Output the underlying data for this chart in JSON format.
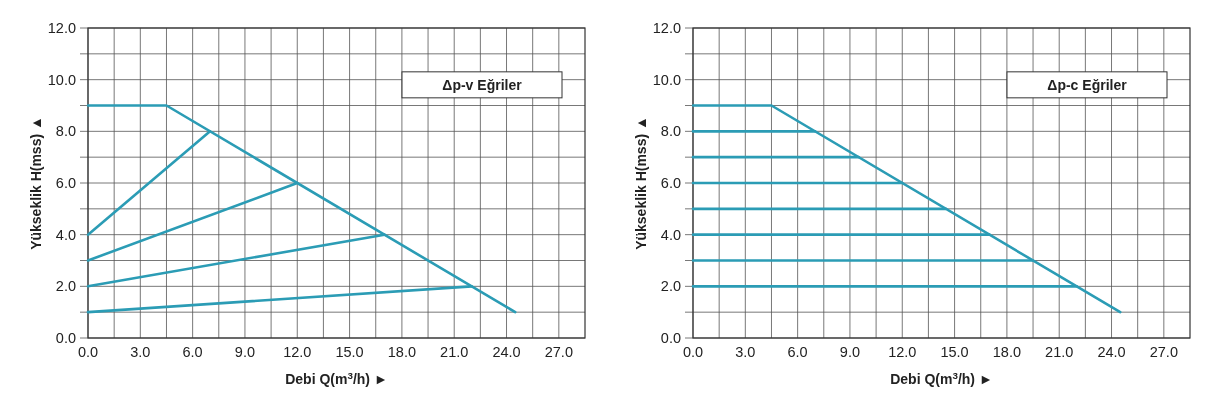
{
  "chart_data": [
    {
      "type": "line",
      "xlabel": "Debi Q(m$^{3}$/h) ►",
      "ylabel": "Yükseklik H(mss) ▲",
      "annotations": [
        "Δp-v Eğriler"
      ],
      "xlim": [
        0,
        28.5
      ],
      "ylim": [
        0,
        12
      ],
      "xticks": [
        {
          "value": 0,
          "label": "0.0"
        },
        {
          "value": 1.5,
          "label": null
        },
        {
          "value": 3,
          "label": "3.0"
        },
        {
          "value": 4.5,
          "label": null
        },
        {
          "value": 6,
          "label": "6.0"
        },
        {
          "value": 7.5,
          "label": null
        },
        {
          "value": 9,
          "label": "9.0"
        },
        {
          "value": 10.5,
          "label": null
        },
        {
          "value": 12,
          "label": "12.0"
        },
        {
          "value": 13.5,
          "label": null
        },
        {
          "value": 15,
          "label": "15.0"
        },
        {
          "value": 16.5,
          "label": null
        },
        {
          "value": 18,
          "label": "18.0"
        },
        {
          "value": 19.5,
          "label": null
        },
        {
          "value": 21,
          "label": "21.0"
        },
        {
          "value": 22.5,
          "label": null
        },
        {
          "value": 24,
          "label": "24.0"
        },
        {
          "value": 25.5,
          "label": null
        },
        {
          "value": 27,
          "label": "27.0"
        }
      ],
      "yticks": [
        {
          "value": 0,
          "label": "0.0"
        },
        {
          "value": 1,
          "label": null
        },
        {
          "value": 2,
          "label": "2.0"
        },
        {
          "value": 3,
          "label": null
        },
        {
          "value": 4,
          "label": "4.0"
        },
        {
          "value": 5,
          "label": null
        },
        {
          "value": 6,
          "label": "6.0"
        },
        {
          "value": 7,
          "label": null
        },
        {
          "value": 8,
          "label": "8.0"
        },
        {
          "value": 9,
          "label": null
        },
        {
          "value": 10,
          "label": "10.0"
        },
        {
          "value": 11,
          "label": null
        },
        {
          "value": 12,
          "label": "12.0"
        }
      ],
      "grid": true,
      "marker": "none",
      "line_style": "solid",
      "series": [
        {
          "color": "#2b9cb5",
          "x": [
            0,
            4.5,
            24.5
          ],
          "values": [
            9,
            9,
            1
          ]
        },
        {
          "color": "#2b9cb5",
          "x": [
            0,
            7
          ],
          "values": [
            4,
            8
          ]
        },
        {
          "color": "#2b9cb5",
          "x": [
            0,
            12
          ],
          "values": [
            3,
            6
          ]
        },
        {
          "color": "#2b9cb5",
          "x": [
            0,
            17
          ],
          "values": [
            2,
            4
          ]
        },
        {
          "color": "#2b9cb5",
          "x": [
            0,
            22
          ],
          "values": [
            1,
            2
          ]
        }
      ]
    },
    {
      "type": "line",
      "xlabel": "Debi Q(m$^{3}$/h) ►",
      "ylabel": "Yükseklik H(mss) ▲",
      "annotations": [
        "Δp-c Eğriler"
      ],
      "xlim": [
        0,
        28.5
      ],
      "ylim": [
        0,
        12
      ],
      "xticks": [
        {
          "value": 0,
          "label": "0.0"
        },
        {
          "value": 1.5,
          "label": null
        },
        {
          "value": 3,
          "label": "3.0"
        },
        {
          "value": 4.5,
          "label": null
        },
        {
          "value": 6,
          "label": "6.0"
        },
        {
          "value": 7.5,
          "label": null
        },
        {
          "value": 9,
          "label": "9.0"
        },
        {
          "value": 10.5,
          "label": null
        },
        {
          "value": 12,
          "label": "12.0"
        },
        {
          "value": 13.5,
          "label": null
        },
        {
          "value": 15,
          "label": "15.0"
        },
        {
          "value": 16.5,
          "label": null
        },
        {
          "value": 18,
          "label": "18.0"
        },
        {
          "value": 19.5,
          "label": null
        },
        {
          "value": 21,
          "label": "21.0"
        },
        {
          "value": 22.5,
          "label": null
        },
        {
          "value": 24,
          "label": "24.0"
        },
        {
          "value": 25.5,
          "label": null
        },
        {
          "value": 27,
          "label": "27.0"
        }
      ],
      "yticks": [
        {
          "value": 0,
          "label": "0.0"
        },
        {
          "value": 1,
          "label": null
        },
        {
          "value": 2,
          "label": "2.0"
        },
        {
          "value": 3,
          "label": null
        },
        {
          "value": 4,
          "label": "4.0"
        },
        {
          "value": 5,
          "label": null
        },
        {
          "value": 6,
          "label": "6.0"
        },
        {
          "value": 7,
          "label": null
        },
        {
          "value": 8,
          "label": "8.0"
        },
        {
          "value": 9,
          "label": null
        },
        {
          "value": 10,
          "label": "10.0"
        },
        {
          "value": 11,
          "label": null
        },
        {
          "value": 12,
          "label": "12.0"
        }
      ],
      "grid": true,
      "marker": "none",
      "line_style": "solid",
      "series": [
        {
          "color": "#2b9cb5",
          "x": [
            0,
            4.5,
            24.5
          ],
          "values": [
            9,
            9,
            1
          ]
        },
        {
          "color": "#2b9cb5",
          "x": [
            0,
            7
          ],
          "values": [
            8,
            8
          ]
        },
        {
          "color": "#2b9cb5",
          "x": [
            0,
            9.5
          ],
          "values": [
            7,
            7
          ]
        },
        {
          "color": "#2b9cb5",
          "x": [
            0,
            12
          ],
          "values": [
            6,
            6
          ]
        },
        {
          "color": "#2b9cb5",
          "x": [
            0,
            14.5
          ],
          "values": [
            5,
            5
          ]
        },
        {
          "color": "#2b9cb5",
          "x": [
            0,
            17
          ],
          "values": [
            4,
            4
          ]
        },
        {
          "color": "#2b9cb5",
          "x": [
            0,
            19.5
          ],
          "values": [
            3,
            3
          ]
        },
        {
          "color": "#2b9cb5",
          "x": [
            0,
            22
          ],
          "values": [
            2,
            2
          ]
        }
      ]
    }
  ]
}
